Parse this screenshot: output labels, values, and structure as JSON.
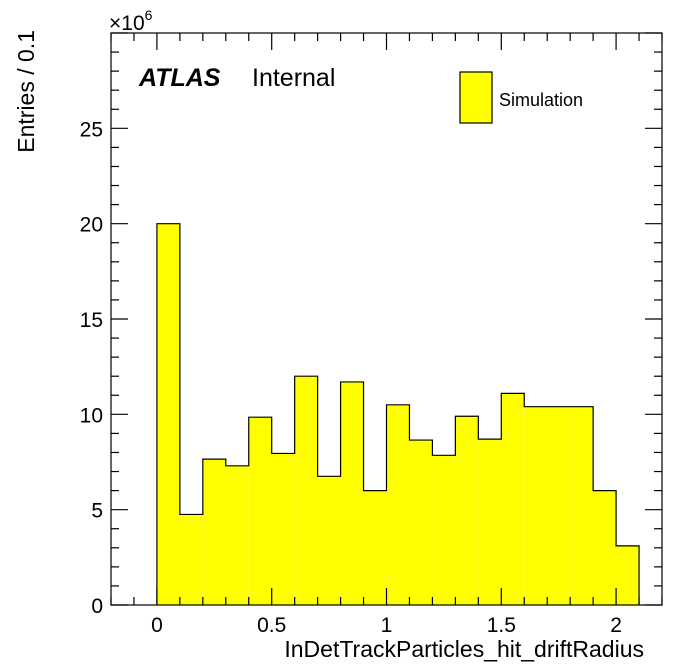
{
  "chart_data": {
    "type": "bar",
    "xlabel": "InDetTrackParticles_hit_driftRadius",
    "ylabel": "Entries / 0.1",
    "y_multiplier": "×10",
    "y_multiplier_exp": "6",
    "atlas_label": "ATLAS",
    "status_label": "Internal",
    "xlim": [
      -0.2,
      2.2
    ],
    "ylim": [
      0,
      30
    ],
    "x_ticks": [
      0,
      0.5,
      1,
      1.5,
      2
    ],
    "x_tick_labels": [
      "0",
      "0.5",
      "1",
      "1.5",
      "2"
    ],
    "y_ticks": [
      0,
      5,
      10,
      15,
      20,
      25
    ],
    "y_tick_labels": [
      "0",
      "5",
      "10",
      "15",
      "20",
      "25"
    ],
    "bin_edges": [
      0,
      0.1,
      0.2,
      0.3,
      0.4,
      0.5,
      0.6,
      0.7,
      0.8,
      0.9,
      1.0,
      1.1,
      1.2,
      1.3,
      1.4,
      1.5,
      1.6,
      1.7,
      1.8,
      1.9,
      2.0,
      2.1
    ],
    "values": [
      20.0,
      4.75,
      7.65,
      7.3,
      9.85,
      7.95,
      12.0,
      6.75,
      11.7,
      6.0,
      10.5,
      8.65,
      7.85,
      9.9,
      8.7,
      11.1,
      10.4,
      10.4,
      10.4,
      6.0,
      3.1
    ],
    "legend": {
      "entries": [
        "Simulation"
      ],
      "position": "top-right"
    },
    "fill_color": "#ffff00",
    "line_color": "#000000"
  }
}
